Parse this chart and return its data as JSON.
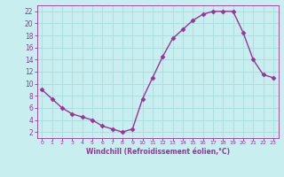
{
  "x": [
    0,
    1,
    2,
    3,
    4,
    5,
    6,
    7,
    8,
    9,
    10,
    11,
    12,
    13,
    14,
    15,
    16,
    17,
    18,
    19,
    20,
    21,
    22,
    23
  ],
  "y": [
    9,
    7.5,
    6,
    5,
    4.5,
    4,
    3,
    2.5,
    2,
    2.5,
    7.5,
    11,
    14.5,
    17.5,
    19,
    20.5,
    21.5,
    22,
    22,
    22,
    18.5,
    14,
    11.5,
    11
  ],
  "line_color": "#993399",
  "marker": "D",
  "markersize": 2.5,
  "linewidth": 1.0,
  "xlim": [
    -0.5,
    23.5
  ],
  "ylim": [
    1,
    23
  ],
  "yticks": [
    2,
    4,
    6,
    8,
    10,
    12,
    14,
    16,
    18,
    20,
    22
  ],
  "xticks": [
    0,
    1,
    2,
    3,
    4,
    5,
    6,
    7,
    8,
    9,
    10,
    11,
    12,
    13,
    14,
    15,
    16,
    17,
    18,
    19,
    20,
    21,
    22,
    23
  ],
  "xlabel": "Windchill (Refroidissement éolien,°C)",
  "background_color": "#c8eef0",
  "grid_color": "#aadddd",
  "tick_color": "#993399",
  "xlabel_color": "#993399",
  "spine_color": "#993399"
}
